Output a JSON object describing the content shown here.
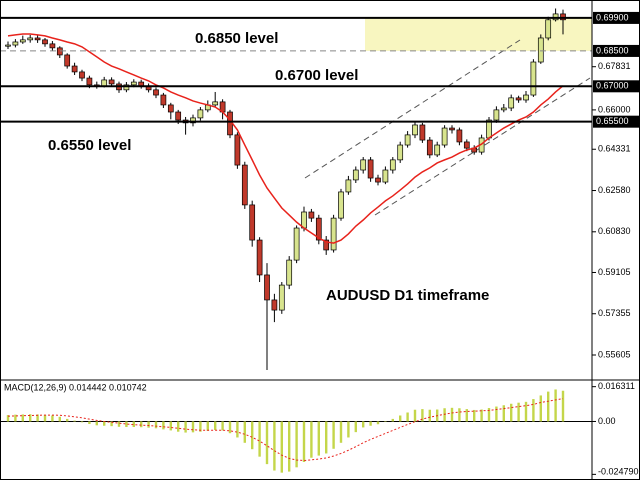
{
  "chart_data": [
    {
      "type": "candlestick",
      "ylim": [
        0.5463,
        0.7066
      ],
      "yticks": [
        0.67831,
        {
          "value": 0.66,
          "label": "0.66000"
        },
        0.64331,
        {
          "value": 0.6258,
          "label": "0.62580"
        },
        {
          "value": 0.6083,
          "label": "0.60830"
        },
        0.59105,
        0.57355,
        0.55605
      ],
      "levels": [
        {
          "value": 0.699,
          "label": "0.69900",
          "style": "solid"
        },
        {
          "value": 0.685,
          "label": "0.68500",
          "style": "dashed"
        },
        {
          "value": 0.67,
          "label": "0.67000",
          "style": "solid"
        },
        {
          "value": 0.655,
          "label": "0.65500",
          "style": "solid"
        }
      ],
      "zone": [
        0.699,
        0.685
      ],
      "annotations": [
        "0.6850 level",
        "0.6700 level",
        "0.6550 level",
        "AUDUSD D1 timeframe"
      ],
      "colors": {
        "up": "#d8e48e",
        "down": "#c0392b",
        "zone": "#f8f6c0"
      },
      "open": [
        0.687,
        0.6875,
        0.6888,
        0.6897,
        0.6905,
        0.6897,
        0.688,
        0.6863,
        0.6833,
        0.6786,
        0.6761,
        0.6735,
        0.6706,
        0.6702,
        0.6727,
        0.671,
        0.6685,
        0.6706,
        0.6718,
        0.6702,
        0.6685,
        0.6663,
        0.6621,
        0.6591,
        0.6557,
        0.6545,
        0.6566,
        0.66,
        0.6621,
        0.6634,
        0.6591,
        0.6494,
        0.6366,
        0.6197,
        0.6048,
        0.59,
        0.5794,
        0.5751,
        0.5857,
        0.5963,
        0.6099,
        0.6167,
        0.6141,
        0.6048,
        0.6006,
        0.6141,
        0.6252,
        0.6303,
        0.6345,
        0.6388,
        0.6311,
        0.6294,
        0.6345,
        0.6388,
        0.6451,
        0.6494,
        0.6536,
        0.6472,
        0.6409,
        0.6451,
        0.6523,
        0.6515,
        0.6464,
        0.6438,
        0.6421,
        0.6481,
        0.6557,
        0.66,
        0.6608,
        0.6651,
        0.6642,
        0.6663,
        0.6803,
        0.6905,
        0.6982,
        0.7007
      ],
      "high": [
        0.689,
        0.69,
        0.6915,
        0.6918,
        0.6916,
        0.6905,
        0.6892,
        0.687,
        0.684,
        0.68,
        0.677,
        0.6745,
        0.672,
        0.674,
        0.6738,
        0.672,
        0.6718,
        0.673,
        0.6728,
        0.6712,
        0.6695,
        0.6672,
        0.663,
        0.66,
        0.657,
        0.658,
        0.6612,
        0.664,
        0.6676,
        0.6645,
        0.66,
        0.6505,
        0.638,
        0.6215,
        0.606,
        0.595,
        0.582,
        0.587,
        0.598,
        0.611,
        0.619,
        0.618,
        0.6155,
        0.6065,
        0.6155,
        0.6265,
        0.632,
        0.636,
        0.64,
        0.64,
        0.6325,
        0.636,
        0.64,
        0.6465,
        0.651,
        0.655,
        0.6545,
        0.6485,
        0.6465,
        0.6535,
        0.6535,
        0.6525,
        0.6475,
        0.645,
        0.6495,
        0.657,
        0.6615,
        0.6625,
        0.6665,
        0.666,
        0.668,
        0.6815,
        0.692,
        0.6995,
        0.703,
        0.7025
      ],
      "low": [
        0.6858,
        0.6865,
        0.688,
        0.6885,
        0.6884,
        0.6868,
        0.685,
        0.682,
        0.6775,
        0.6748,
        0.6722,
        0.6692,
        0.669,
        0.6695,
        0.6698,
        0.6672,
        0.6675,
        0.6696,
        0.669,
        0.6674,
        0.665,
        0.6608,
        0.656,
        0.654,
        0.6495,
        0.653,
        0.6555,
        0.659,
        0.661,
        0.656,
        0.648,
        0.635,
        0.618,
        0.602,
        0.587,
        0.5497,
        0.57,
        0.5735,
        0.584,
        0.595,
        0.6085,
        0.6125,
        0.603,
        0.5985,
        0.5995,
        0.613,
        0.624,
        0.629,
        0.633,
        0.6295,
        0.628,
        0.6285,
        0.633,
        0.6375,
        0.644,
        0.648,
        0.646,
        0.6395,
        0.64,
        0.644,
        0.65,
        0.645,
        0.6425,
        0.641,
        0.641,
        0.647,
        0.6545,
        0.659,
        0.6595,
        0.663,
        0.663,
        0.6655,
        0.6795,
        0.6895,
        0.6975,
        0.692
      ],
      "close": [
        0.6875,
        0.6888,
        0.6897,
        0.6905,
        0.6897,
        0.688,
        0.6863,
        0.6833,
        0.6786,
        0.6761,
        0.6735,
        0.6706,
        0.6702,
        0.6727,
        0.671,
        0.6685,
        0.6706,
        0.6718,
        0.6702,
        0.6685,
        0.6663,
        0.6621,
        0.6591,
        0.6557,
        0.6545,
        0.6566,
        0.66,
        0.6621,
        0.6634,
        0.6591,
        0.6494,
        0.6366,
        0.6197,
        0.6048,
        0.59,
        0.5794,
        0.5751,
        0.5857,
        0.5963,
        0.6099,
        0.6167,
        0.6141,
        0.6048,
        0.6006,
        0.6141,
        0.6252,
        0.6303,
        0.6345,
        0.6388,
        0.6311,
        0.6294,
        0.6345,
        0.6388,
        0.6451,
        0.6494,
        0.6536,
        0.6472,
        0.6409,
        0.6451,
        0.6523,
        0.6515,
        0.6464,
        0.6438,
        0.6421,
        0.6481,
        0.6557,
        0.66,
        0.6608,
        0.6651,
        0.6642,
        0.6663,
        0.6803,
        0.6905,
        0.6982,
        0.7007,
        0.6982
      ],
      "ma": {
        "color": "#e8231c",
        "values": [
          0.6914,
          0.6918,
          0.6922,
          0.6922,
          0.6918,
          0.6914,
          0.6905,
          0.6897,
          0.6888,
          0.688,
          0.6867,
          0.6846,
          0.6825,
          0.6803,
          0.6786,
          0.6774,
          0.6761,
          0.6748,
          0.6735,
          0.6723,
          0.6706,
          0.6693,
          0.6676,
          0.6663,
          0.6651,
          0.6638,
          0.6629,
          0.6621,
          0.6612,
          0.6591,
          0.6557,
          0.6515,
          0.6451,
          0.6388,
          0.6324,
          0.6269,
          0.6226,
          0.6184,
          0.6154,
          0.6124,
          0.6099,
          0.6078,
          0.6057,
          0.604,
          0.6035,
          0.6048,
          0.6074,
          0.6107,
          0.6133,
          0.6163,
          0.6188,
          0.6214,
          0.6235,
          0.626,
          0.6286,
          0.6315,
          0.6337,
          0.6354,
          0.6375,
          0.6388,
          0.64,
          0.6417,
          0.643,
          0.6438,
          0.6455,
          0.6481,
          0.6502,
          0.6523,
          0.654,
          0.6557,
          0.657,
          0.6591,
          0.6621,
          0.6646,
          0.6676,
          0.6702
        ]
      }
    },
    {
      "type": "macd",
      "title": "MACD(12,26,9) 0.014442 0.010742",
      "ylim": [
        -0.0265,
        0.0185
      ],
      "yticks": [
        0.016311,
        {
          "value": 0,
          "label": "0.00"
        },
        {
          "value": -0.02479,
          "label": "-0.024790"
        }
      ],
      "colors": {
        "histogram": "#c4d64a",
        "signal": "#e8231c"
      },
      "histogram": [
        0.003,
        0.0032,
        0.0033,
        0.0034,
        0.0033,
        0.0031,
        0.0028,
        0.0022,
        0.0012,
        0.0004,
        -0.0004,
        -0.0012,
        -0.0018,
        -0.002,
        -0.0022,
        -0.0025,
        -0.0026,
        -0.0026,
        -0.0027,
        -0.0029,
        -0.0032,
        -0.0037,
        -0.0042,
        -0.0048,
        -0.0052,
        -0.0051,
        -0.0048,
        -0.0044,
        -0.004,
        -0.0042,
        -0.0055,
        -0.0075,
        -0.01,
        -0.013,
        -0.0165,
        -0.02,
        -0.023,
        -0.024,
        -0.0235,
        -0.0215,
        -0.019,
        -0.017,
        -0.016,
        -0.015,
        -0.0128,
        -0.01,
        -0.0075,
        -0.005,
        -0.0028,
        -0.002,
        -0.0013,
        0.0,
        0.0012,
        0.0028,
        0.0042,
        0.0055,
        0.0058,
        0.0055,
        0.0056,
        0.0062,
        0.0064,
        0.0062,
        0.0058,
        0.0054,
        0.0056,
        0.0063,
        0.007,
        0.0076,
        0.0083,
        0.0088,
        0.0092,
        0.0105,
        0.0122,
        0.014,
        0.015,
        0.0144
      ],
      "signal": [
        0.0025,
        0.0026,
        0.0027,
        0.0028,
        0.0029,
        0.003,
        0.003,
        0.0029,
        0.0026,
        0.0022,
        0.0017,
        0.0011,
        0.0005,
        0.0,
        -0.0004,
        -0.0008,
        -0.0012,
        -0.0015,
        -0.0017,
        -0.0019,
        -0.0022,
        -0.0025,
        -0.0028,
        -0.0032,
        -0.0036,
        -0.0039,
        -0.0041,
        -0.0041,
        -0.0041,
        -0.0041,
        -0.0044,
        -0.005,
        -0.006,
        -0.0074,
        -0.0092,
        -0.0114,
        -0.0137,
        -0.0158,
        -0.0173,
        -0.0181,
        -0.0183,
        -0.018,
        -0.0176,
        -0.0171,
        -0.0162,
        -0.015,
        -0.0135,
        -0.0118,
        -0.01,
        -0.0084,
        -0.007,
        -0.0056,
        -0.0042,
        -0.0028,
        -0.0014,
        -0.0001,
        0.0011,
        0.002,
        0.0027,
        0.0034,
        0.004,
        0.0044,
        0.0047,
        0.0048,
        0.005,
        0.0052,
        0.0056,
        0.006,
        0.0065,
        0.007,
        0.0074,
        0.008,
        0.0089,
        0.0095,
        0.0101,
        0.0107
      ]
    }
  ]
}
